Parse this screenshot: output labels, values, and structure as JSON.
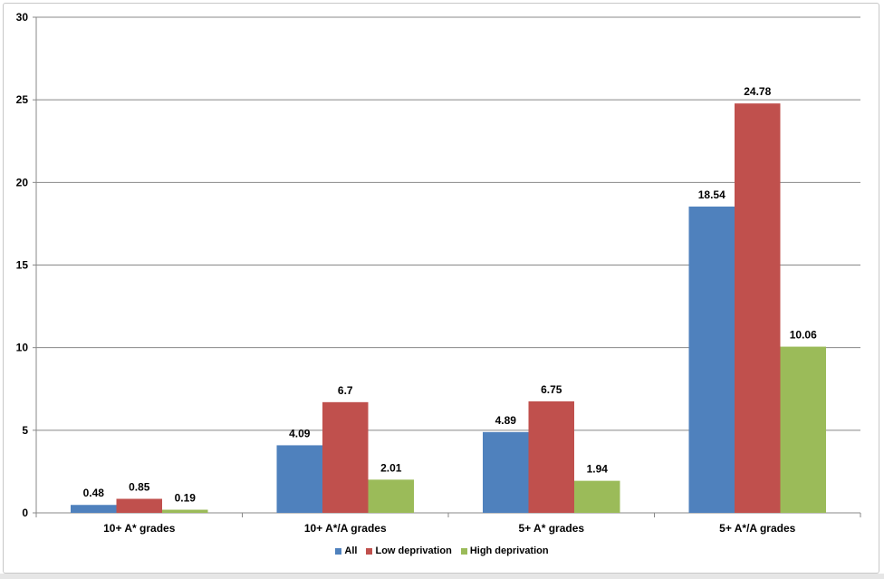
{
  "chart_data": {
    "type": "bar",
    "categories": [
      "10+ A* grades",
      "10+ A*/A grades",
      "5+ A* grades",
      "5+ A*/A grades"
    ],
    "series": [
      {
        "name": "All",
        "values": [
          0.48,
          4.09,
          4.89,
          18.54
        ],
        "color": "#4F81BD"
      },
      {
        "name": "Low deprivation",
        "values": [
          0.85,
          6.7,
          6.75,
          24.78
        ],
        "color": "#C0504D"
      },
      {
        "name": "High deprivation",
        "values": [
          0.19,
          2.01,
          1.94,
          10.06
        ],
        "color": "#9BBB59"
      }
    ],
    "data_labels": [
      [
        "0.48",
        "4.09",
        "4.89",
        "18.54"
      ],
      [
        "0.85",
        "6.7",
        "6.75",
        "24.78"
      ],
      [
        "0.19",
        "2.01",
        "1.94",
        "10.06"
      ]
    ],
    "title": "",
    "xlabel": "",
    "ylabel": "",
    "ylim": [
      0,
      30
    ],
    "yticks": [
      "0",
      "5",
      "10",
      "15",
      "20",
      "25",
      "30"
    ],
    "grid": true,
    "legend": "bottom"
  }
}
